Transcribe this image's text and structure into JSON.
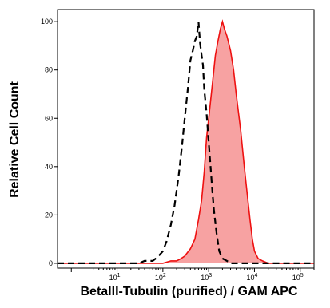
{
  "chart_data": {
    "type": "area",
    "title": "",
    "xlabel": "BetaIII-Tubulin (purified) / GAM APC",
    "ylabel": "Relative Cell Count",
    "x_scale": "log",
    "xlim": [
      0.5,
      200000
    ],
    "ylim": [
      -2,
      105
    ],
    "grid": false,
    "legend": "none",
    "y_ticks": [
      "0",
      "20",
      "40",
      "60",
      "80",
      "100"
    ],
    "x_ticks": [
      {
        "base": "10",
        "exp": "1",
        "value": 10
      },
      {
        "base": "10",
        "exp": "2",
        "value": 100
      },
      {
        "base": "10",
        "exp": "3",
        "value": 1000
      },
      {
        "base": "10",
        "exp": "4",
        "value": 10000
      },
      {
        "base": "10",
        "exp": "5",
        "value": 100000
      }
    ],
    "series": [
      {
        "style": "dashed-line",
        "color": "#000000",
        "x": [
          0.5,
          2,
          5,
          10,
          15,
          20,
          30,
          40,
          50,
          60,
          70,
          80,
          90,
          100,
          120,
          150,
          180,
          220,
          260,
          300,
          350,
          400,
          450,
          500,
          550,
          600,
          650,
          700,
          750,
          800,
          900,
          1000,
          1100,
          1200,
          1300,
          1500,
          1700,
          2000,
          2500,
          3000,
          4000,
          10000,
          200000
        ],
        "y": [
          0,
          0,
          0,
          0,
          0,
          0,
          0,
          1,
          1,
          1,
          2,
          3,
          4,
          5,
          9,
          16,
          24,
          36,
          48,
          60,
          72,
          84,
          88,
          92,
          94,
          100,
          91,
          86,
          82,
          72,
          62,
          50,
          40,
          30,
          22,
          12,
          5,
          2,
          1,
          0,
          0,
          0,
          0
        ]
      },
      {
        "style": "filled-area",
        "color": "#ee1111",
        "fill": "#f7a2a2",
        "x": [
          0.5,
          50,
          100,
          150,
          200,
          250,
          300,
          400,
          500,
          600,
          700,
          800,
          900,
          1000,
          1200,
          1400,
          1600,
          1800,
          2000,
          2200,
          2500,
          3000,
          3500,
          4000,
          5000,
          6000,
          7000,
          8000,
          9000,
          10000,
          12000,
          15000,
          20000,
          200000
        ],
        "y": [
          0,
          0,
          0,
          1,
          1,
          2,
          3,
          6,
          10,
          18,
          26,
          38,
          52,
          60,
          74,
          86,
          92,
          97,
          100,
          97,
          94,
          88,
          80,
          70,
          55,
          40,
          28,
          18,
          10,
          5,
          2,
          1,
          0,
          0
        ]
      }
    ]
  }
}
